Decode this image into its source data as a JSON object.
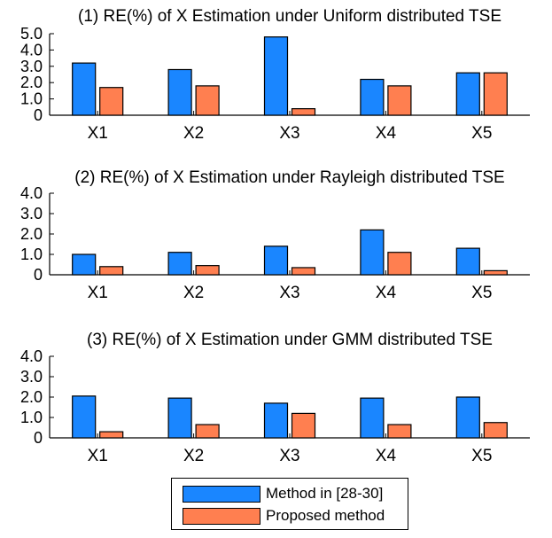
{
  "chart_data": [
    {
      "type": "bar",
      "title": "(1) RE(%) of X Estimation under Uniform distributed TSE",
      "categories": [
        "X1",
        "X2",
        "X3",
        "X4",
        "X5"
      ],
      "ylim": [
        0,
        5.0
      ],
      "yticks": [
        "0",
        "1.0",
        "2.0",
        "3.0",
        "4.0",
        "5.0"
      ],
      "ytick_values": [
        0,
        1,
        2,
        3,
        4,
        5
      ],
      "series": [
        {
          "name": "Method in [28-30]",
          "values": [
            3.2,
            2.8,
            4.8,
            2.2,
            2.6
          ]
        },
        {
          "name": "Proposed method",
          "values": [
            1.7,
            1.8,
            0.4,
            1.8,
            2.6
          ]
        }
      ]
    },
    {
      "type": "bar",
      "title": "(2) RE(%) of X Estimation under Rayleigh distributed TSE",
      "categories": [
        "X1",
        "X2",
        "X3",
        "X4",
        "X5"
      ],
      "ylim": [
        0,
        4.0
      ],
      "yticks": [
        "0",
        "1.0",
        "2.0",
        "3.0",
        "4.0"
      ],
      "ytick_values": [
        0,
        1,
        2,
        3,
        4
      ],
      "series": [
        {
          "name": "Method in [28-30]",
          "values": [
            1.0,
            1.1,
            1.4,
            2.2,
            1.3
          ]
        },
        {
          "name": "Proposed method",
          "values": [
            0.4,
            0.45,
            0.35,
            1.1,
            0.2
          ]
        }
      ]
    },
    {
      "type": "bar",
      "title": "(3) RE(%) of X Estimation under GMM distributed TSE",
      "categories": [
        "X1",
        "X2",
        "X3",
        "X4",
        "X5"
      ],
      "ylim": [
        0,
        4.0
      ],
      "yticks": [
        "0",
        "1.0",
        "2.0",
        "3.0",
        "4.0"
      ],
      "ytick_values": [
        0,
        1,
        2,
        3,
        4
      ],
      "series": [
        {
          "name": "Method in [28-30]",
          "values": [
            2.05,
            1.95,
            1.7,
            1.95,
            2.0
          ]
        },
        {
          "name": "Proposed method",
          "values": [
            0.3,
            0.65,
            1.2,
            0.65,
            0.75
          ]
        }
      ]
    }
  ],
  "legend": {
    "position": "bottom-center",
    "items": [
      {
        "label": "Method in [28-30]",
        "color": "#1a86ff"
      },
      {
        "label": "Proposed method",
        "color": "#ff7f50"
      }
    ]
  },
  "colors": {
    "series_a": "#1a86ff",
    "series_b": "#ff7f50"
  }
}
